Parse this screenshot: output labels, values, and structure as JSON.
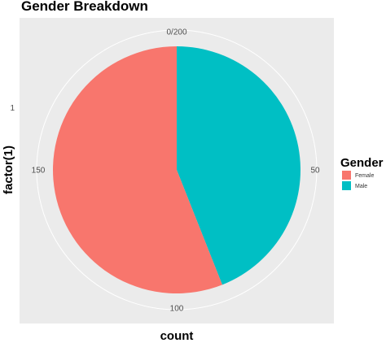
{
  "chart_data": {
    "type": "pie",
    "title": "Gender Breakdown",
    "xlabel": "count",
    "ylabel": "factor(1)",
    "y_tick": "1",
    "total": 200,
    "theta_ticks": [
      {
        "value": 0,
        "label": "0/200"
      },
      {
        "value": 50,
        "label": "50"
      },
      {
        "value": 100,
        "label": "100"
      },
      {
        "value": 150,
        "label": "150"
      }
    ],
    "series": [
      {
        "name": "Male",
        "value": 88,
        "color": "#00BFC4"
      },
      {
        "name": "Female",
        "value": 112,
        "color": "#F8766D"
      }
    ],
    "legend": {
      "title": "Gender",
      "placement": "right",
      "items": [
        {
          "label": "Female",
          "color": "#F8766D"
        },
        {
          "label": "Male",
          "color": "#00BFC4"
        }
      ]
    },
    "panel_background": "#EBEBEB",
    "grid_color": "#FFFFFF"
  }
}
